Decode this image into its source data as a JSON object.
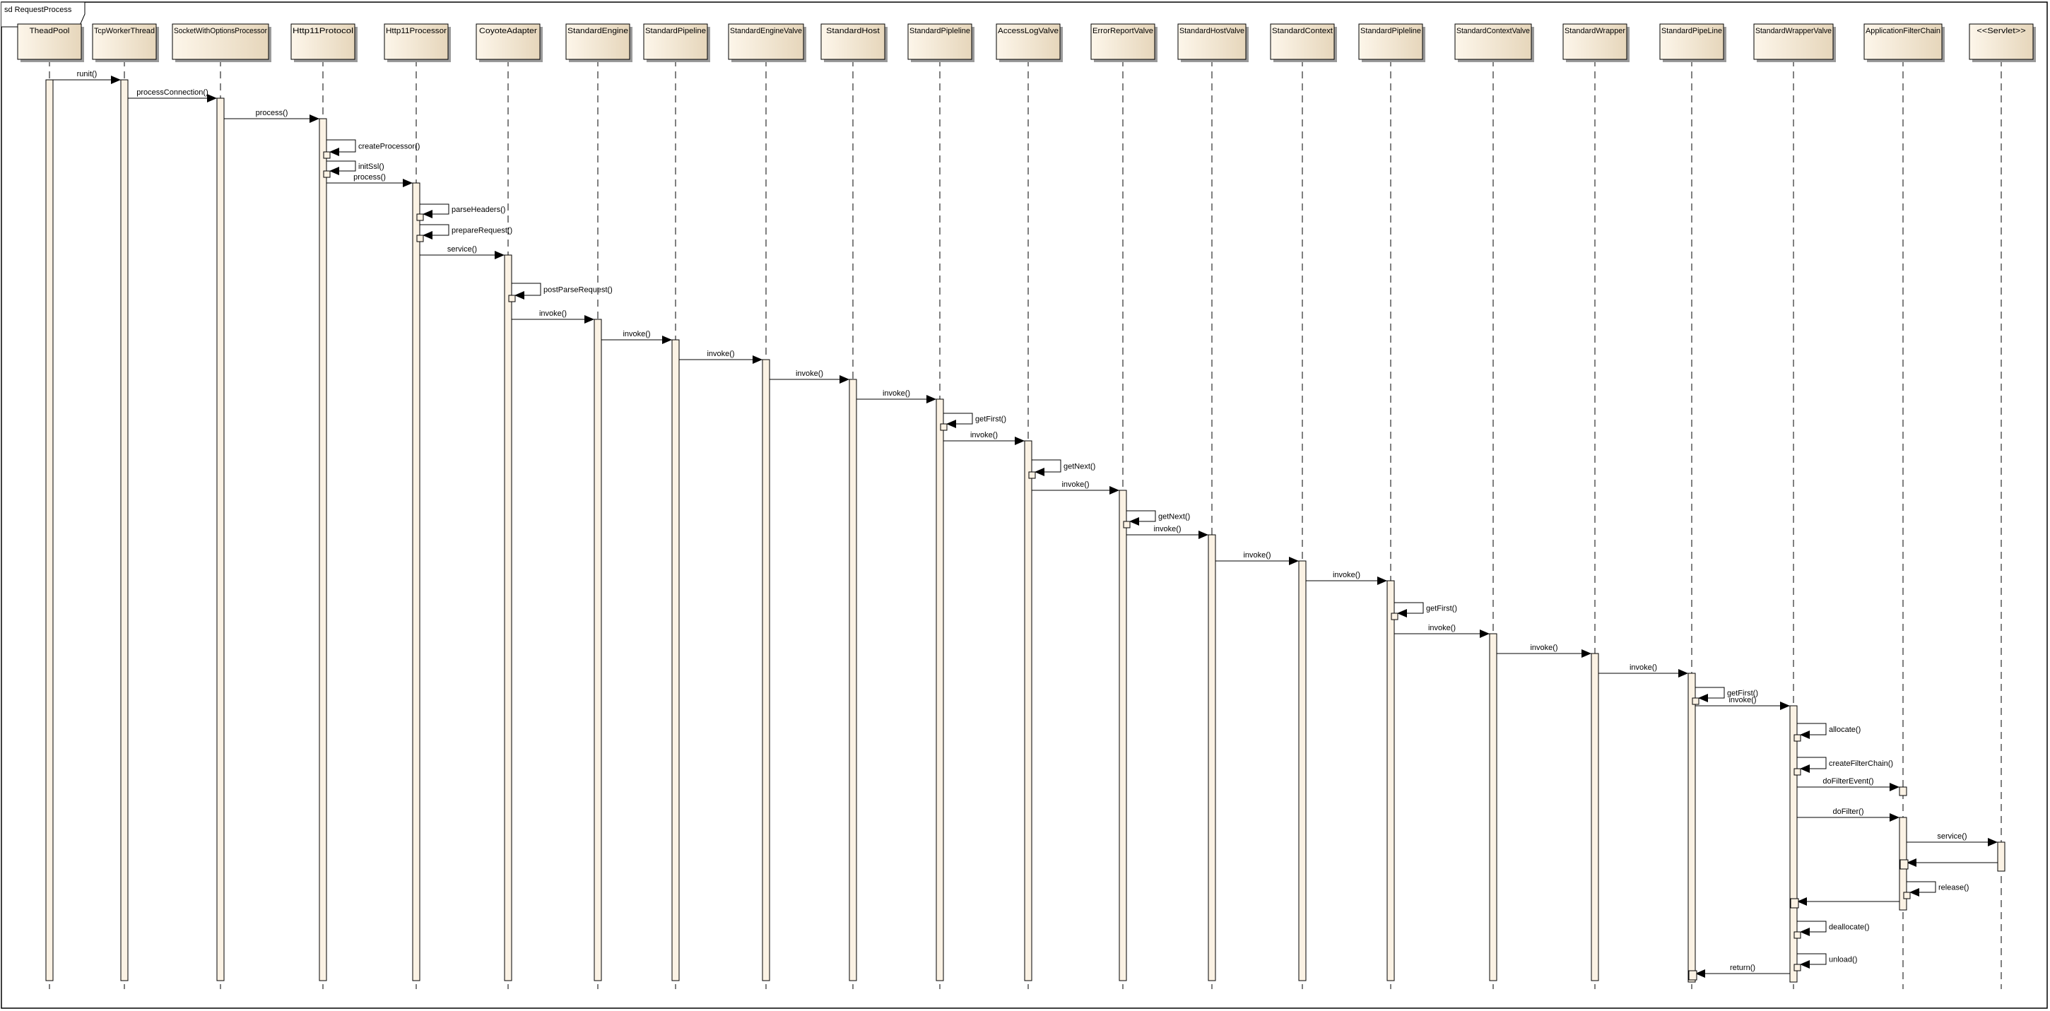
{
  "frame": {
    "title": "sd RequestProcess"
  },
  "colors": {
    "box_fill_light": "#fdf6ea",
    "box_fill_dark": "#e6d6bb",
    "activation_fill": "#fbf2e4",
    "line": "#000000",
    "shadow": "#9a9a9a"
  },
  "lifelines": [
    {
      "id": "theadpool",
      "name": "TheadPool"
    },
    {
      "id": "tcpworker",
      "name": "TcpWorkerThread"
    },
    {
      "id": "socketproc",
      "name": "SocketWithOptionsProcessor"
    },
    {
      "id": "http11protocol",
      "name": "Http11Protocol"
    },
    {
      "id": "http11processor",
      "name": "Http11Processor"
    },
    {
      "id": "coyote",
      "name": "CoyoteAdapter"
    },
    {
      "id": "stdengine",
      "name": "StandardEngine"
    },
    {
      "id": "stdpipeline",
      "name": "StandardPipeline"
    },
    {
      "id": "stdenginevalve",
      "name": "StandardEngineValve"
    },
    {
      "id": "stdhost",
      "name": "StandardHost"
    },
    {
      "id": "stdpipleline1",
      "name": "StandardPipleline"
    },
    {
      "id": "accesslog",
      "name": "AccessLogValve"
    },
    {
      "id": "errorreport",
      "name": "ErrorReportValve"
    },
    {
      "id": "stdhostvalve",
      "name": "StandardHostValve"
    },
    {
      "id": "stdcontext",
      "name": "StandardContext"
    },
    {
      "id": "stdpipleline2",
      "name": "StandardPipleline"
    },
    {
      "id": "stdcontextvalve",
      "name": "StandardContextValve"
    },
    {
      "id": "stdwrapper",
      "name": "StandardWrapper"
    },
    {
      "id": "stdpipeline3",
      "name": "StandardPipeLine"
    },
    {
      "id": "stdwrappervalve",
      "name": "StandardWrapperValve"
    },
    {
      "id": "filterchain",
      "name": "ApplicationFilterChain"
    },
    {
      "id": "servlet",
      "name": "<<Servlet>>"
    }
  ],
  "messages": [
    {
      "from": 0,
      "to": 1,
      "label": "runit()",
      "kind": "call"
    },
    {
      "from": 1,
      "to": 2,
      "label": "processConnection()",
      "kind": "call"
    },
    {
      "from": 2,
      "to": 3,
      "label": "process()",
      "kind": "call"
    },
    {
      "from": 3,
      "to": 3,
      "label": "createProcessor()",
      "kind": "self"
    },
    {
      "from": 3,
      "to": 3,
      "label": "initSsl()",
      "kind": "self"
    },
    {
      "from": 3,
      "to": 4,
      "label": "process()",
      "kind": "call"
    },
    {
      "from": 4,
      "to": 4,
      "label": "parseHeaders()",
      "kind": "self"
    },
    {
      "from": 4,
      "to": 4,
      "label": "prepareRequest()",
      "kind": "self"
    },
    {
      "from": 4,
      "to": 5,
      "label": "service()",
      "kind": "call"
    },
    {
      "from": 5,
      "to": 5,
      "label": "postParseRequest()",
      "kind": "self"
    },
    {
      "from": 5,
      "to": 6,
      "label": "invoke()",
      "kind": "call"
    },
    {
      "from": 6,
      "to": 7,
      "label": "invoke()",
      "kind": "call"
    },
    {
      "from": 7,
      "to": 8,
      "label": "invoke()",
      "kind": "call"
    },
    {
      "from": 8,
      "to": 9,
      "label": "invoke()",
      "kind": "call"
    },
    {
      "from": 9,
      "to": 10,
      "label": "invoke()",
      "kind": "call"
    },
    {
      "from": 10,
      "to": 10,
      "label": "getFirst()",
      "kind": "self"
    },
    {
      "from": 10,
      "to": 11,
      "label": "invoke()",
      "kind": "call"
    },
    {
      "from": 11,
      "to": 11,
      "label": "getNext()",
      "kind": "self"
    },
    {
      "from": 11,
      "to": 12,
      "label": "invoke()",
      "kind": "call"
    },
    {
      "from": 12,
      "to": 12,
      "label": "getNext()",
      "kind": "self"
    },
    {
      "from": 12,
      "to": 13,
      "label": "invoke()",
      "kind": "call"
    },
    {
      "from": 13,
      "to": 14,
      "label": "invoke()",
      "kind": "call"
    },
    {
      "from": 14,
      "to": 15,
      "label": "invoke()",
      "kind": "call"
    },
    {
      "from": 15,
      "to": 15,
      "label": "getFirst()",
      "kind": "self"
    },
    {
      "from": 15,
      "to": 16,
      "label": "invoke()",
      "kind": "call"
    },
    {
      "from": 16,
      "to": 17,
      "label": "invoke()",
      "kind": "call"
    },
    {
      "from": 17,
      "to": 18,
      "label": "invoke()",
      "kind": "call"
    },
    {
      "from": 18,
      "to": 18,
      "label": "getFirst()",
      "kind": "self"
    },
    {
      "from": 18,
      "to": 19,
      "label": "invoke()",
      "kind": "call"
    },
    {
      "from": 19,
      "to": 19,
      "label": "allocate()",
      "kind": "self"
    },
    {
      "from": 19,
      "to": 19,
      "label": "createFilterChain()",
      "kind": "self"
    },
    {
      "from": 19,
      "to": 20,
      "label": "doFilterEvent()",
      "kind": "call"
    },
    {
      "from": 19,
      "to": 20,
      "label": "doFilter()",
      "kind": "call"
    },
    {
      "from": 20,
      "to": 21,
      "label": "service()",
      "kind": "call"
    },
    {
      "from": 21,
      "to": 20,
      "label": "",
      "kind": "return"
    },
    {
      "from": 20,
      "to": 20,
      "label": "release()",
      "kind": "self"
    },
    {
      "from": 20,
      "to": 19,
      "label": "",
      "kind": "return"
    },
    {
      "from": 19,
      "to": 19,
      "label": "deallocate()",
      "kind": "self"
    },
    {
      "from": 19,
      "to": 19,
      "label": "unload()",
      "kind": "self"
    },
    {
      "from": 19,
      "to": 18,
      "label": "return()",
      "kind": "return"
    }
  ]
}
